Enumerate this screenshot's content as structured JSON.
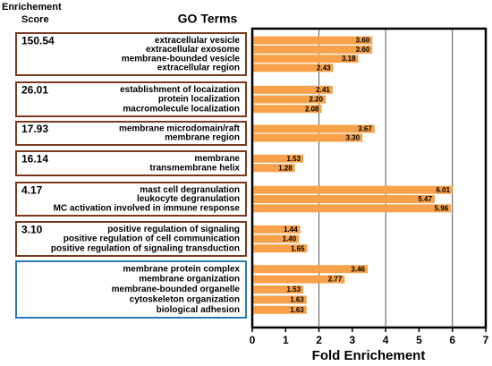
{
  "chart_data": {
    "type": "bar",
    "orientation": "horizontal",
    "score_header": [
      "Enrichement",
      "Score"
    ],
    "terms_header": "GO Terms",
    "x_label": "Fold Enrichement",
    "xlim": [
      0,
      7
    ],
    "xticks": [
      0,
      1,
      2,
      3,
      4,
      5,
      6,
      7
    ],
    "grid": true,
    "bar_color": "#f7a24b",
    "groups": [
      {
        "score": 150.54,
        "color": "#7b3a1e",
        "categories": [
          "extracellular vesicle",
          "extracellular exosome",
          "membrane-bounded vesicle",
          "extracellular region"
        ],
        "values": [
          3.6,
          3.6,
          3.18,
          2.43
        ],
        "value_labels": [
          "3.60",
          "3.60",
          "3.18",
          "2.43"
        ]
      },
      {
        "score": 26.01,
        "color": "#7b3a1e",
        "categories": [
          "establishment of locaization",
          "protein localization",
          "macromolecule localization"
        ],
        "values": [
          2.41,
          2.2,
          2.08
        ],
        "value_labels": [
          "2.41",
          "2.20",
          "2.08"
        ]
      },
      {
        "score": 17.93,
        "color": "#7b3a1e",
        "categories": [
          "membrane microdomain/raft",
          "membrane region"
        ],
        "values": [
          3.67,
          3.3
        ],
        "value_labels": [
          "3.67",
          "3.30"
        ]
      },
      {
        "score": 16.14,
        "color": "#7b3a1e",
        "categories": [
          "membrane",
          "transmembrane helix"
        ],
        "values": [
          1.53,
          1.28
        ],
        "value_labels": [
          "1.53",
          "1.28"
        ]
      },
      {
        "score": 4.17,
        "color": "#7b3a1e",
        "categories": [
          "mast cell degranulation",
          "leukocyte degranulation",
          "MC activation involved in immune response"
        ],
        "values": [
          6.01,
          5.47,
          5.96
        ],
        "value_labels": [
          "6.01",
          "5.47",
          "5.96"
        ]
      },
      {
        "score": 3.1,
        "score_label": "3.10",
        "color": "#7b3a1e",
        "categories": [
          "positive regulation of signaling",
          "positive regulation of cell communication",
          "positive regulation of signaling transduction"
        ],
        "values": [
          1.44,
          1.4,
          1.65
        ],
        "value_labels": [
          "1.44",
          "1.40",
          "1.65"
        ]
      },
      {
        "color": "#2a7ab8",
        "categories": [
          "membrane protein complex",
          "membrane organization",
          "membrane-bounded organelle",
          "cytoskeleton organization",
          "biological adhesion"
        ],
        "values": [
          3.46,
          2.77,
          1.53,
          1.63,
          1.63
        ],
        "value_labels": [
          "3.46",
          "2.77",
          "1.53",
          "1.63",
          "1.63"
        ]
      }
    ]
  }
}
